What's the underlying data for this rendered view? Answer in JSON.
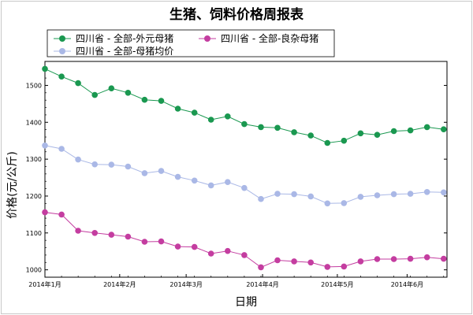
{
  "chart_data": {
    "type": "line",
    "title": "生猪、饲料价格周报表",
    "xlabel": "日期",
    "ylabel": "价格(元/公斤)",
    "ylim": [
      980,
      1565
    ],
    "yticks": [
      1000,
      1100,
      1200,
      1300,
      1400,
      1500
    ],
    "x_tick_labels": [
      "2014年1月",
      "2014年2月",
      "2014年3月",
      "2014年4月",
      "2014年5月",
      "2014年6月"
    ],
    "x_tick_positions": [
      0,
      4.5,
      8.5,
      13.1,
      17.6,
      21.8
    ],
    "x_range": [
      0,
      24.2
    ],
    "grid": false,
    "legend_position": "top-left",
    "series": [
      {
        "name": "四川省 - 全部-外元母猪",
        "color": "#1a9850",
        "values": [
          1545,
          1524,
          1506,
          1474,
          1492,
          1480,
          1461,
          1458,
          1437,
          1426,
          1407,
          1416,
          1395,
          1387,
          1385,
          1373,
          1364,
          1344,
          1350,
          1370,
          1366,
          1376,
          1378,
          1387,
          1381
        ]
      },
      {
        "name": "四川省 - 全部-良杂母猪",
        "color": "#c43da0",
        "values": [
          1156,
          1150,
          1106,
          1100,
          1095,
          1090,
          1076,
          1077,
          1063,
          1062,
          1044,
          1051,
          1040,
          1007,
          1026,
          1023,
          1020,
          1008,
          1009,
          1023,
          1029,
          1029,
          1030,
          1034,
          1030
        ]
      },
      {
        "name": "四川省 - 全部-母猪均价",
        "color": "#aab8e6",
        "values": [
          1337,
          1328,
          1299,
          1286,
          1285,
          1280,
          1262,
          1268,
          1252,
          1242,
          1229,
          1238,
          1222,
          1192,
          1206,
          1205,
          1199,
          1180,
          1181,
          1198,
          1202,
          1205,
          1206,
          1211,
          1210
        ]
      }
    ]
  }
}
